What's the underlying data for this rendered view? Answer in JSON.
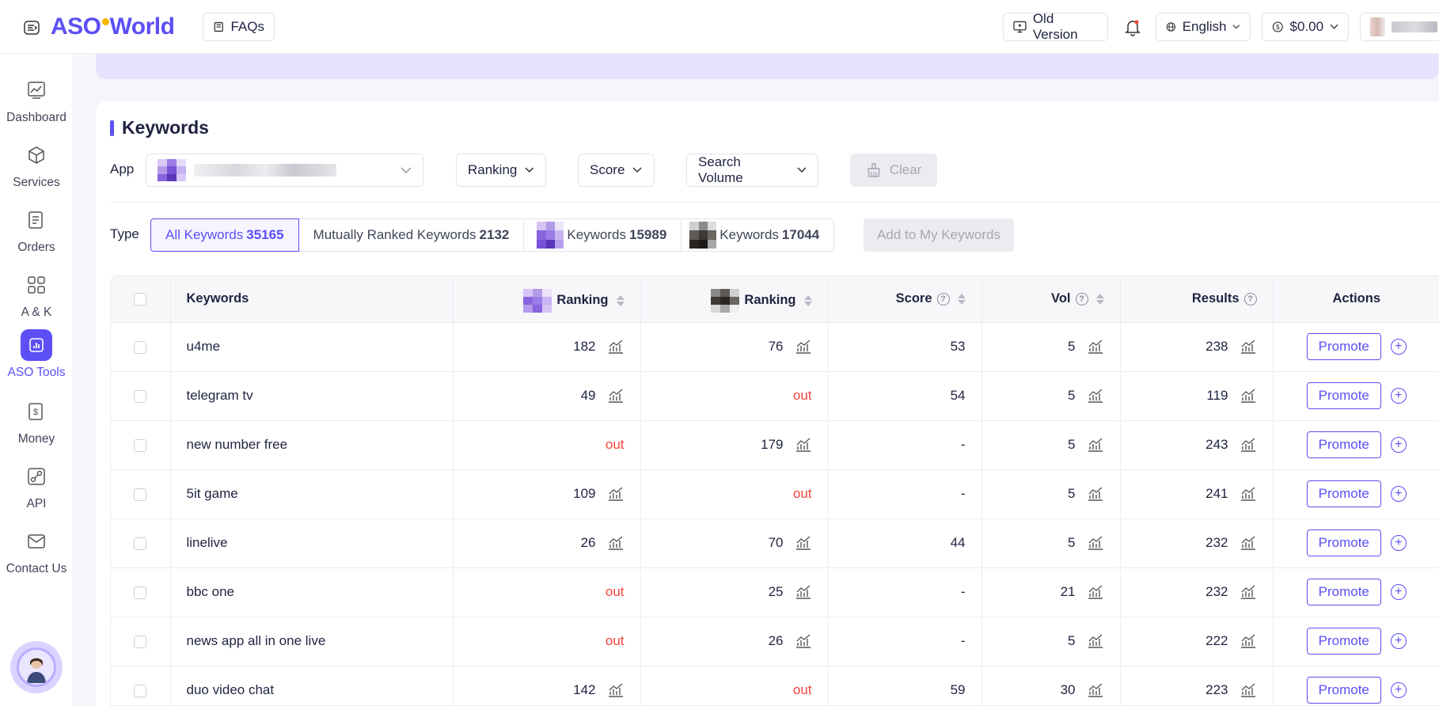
{
  "header": {
    "logo": {
      "part1": "ASO",
      "part2": "World"
    },
    "faqs_label": "FAQs",
    "old_version_label": "Old Version",
    "language_label": "English",
    "balance_label": "$0.00"
  },
  "sidebar": {
    "items": [
      {
        "label": "Dashboard",
        "icon": "chart-line-icon"
      },
      {
        "label": "Services",
        "icon": "cube-icon"
      },
      {
        "label": "Orders",
        "icon": "receipt-icon"
      },
      {
        "label": "A & K",
        "icon": "grid-icon"
      },
      {
        "label": "ASO Tools",
        "icon": "bar-chart-icon",
        "active": true
      },
      {
        "label": "Money",
        "icon": "dollar-icon"
      },
      {
        "label": "API",
        "icon": "api-link-icon"
      },
      {
        "label": "Contact Us",
        "icon": "envelope-icon"
      }
    ]
  },
  "keywords": {
    "title": "Keywords",
    "filters": {
      "app_label": "App",
      "ranking_label": "Ranking",
      "score_label": "Score",
      "volume_label": "Search Volume",
      "clear_label": "Clear"
    },
    "type": {
      "label": "Type",
      "all_label": "All Keywords",
      "all_count": "35165",
      "mutual_label": "Mutually Ranked Keywords",
      "mutual_count": "2132",
      "app1_label": "Keywords",
      "app1_count": "15989",
      "app2_label": "Keywords",
      "app2_count": "17044"
    },
    "add_label": "Add to My Keywords",
    "table": {
      "headers": {
        "keywords": "Keywords",
        "ranking1": "Ranking",
        "ranking2": "Ranking",
        "score": "Score",
        "vol": "Vol",
        "results": "Results",
        "actions": "Actions"
      },
      "promote_label": "Promote",
      "rows": [
        {
          "keyword": "u4me",
          "rank1": "182",
          "rank2": "76",
          "score": "53",
          "vol": "5",
          "results": "238"
        },
        {
          "keyword": "telegram tv",
          "rank1": "49",
          "rank2": "out",
          "score": "54",
          "vol": "5",
          "results": "119"
        },
        {
          "keyword": "new number free",
          "rank1": "out",
          "rank2": "179",
          "score": "-",
          "vol": "5",
          "results": "243"
        },
        {
          "keyword": "5it game",
          "rank1": "109",
          "rank2": "out",
          "score": "-",
          "vol": "5",
          "results": "241"
        },
        {
          "keyword": "linelive",
          "rank1": "26",
          "rank2": "70",
          "score": "44",
          "vol": "5",
          "results": "232"
        },
        {
          "keyword": "bbc one",
          "rank1": "out",
          "rank2": "25",
          "score": "-",
          "vol": "21",
          "results": "232"
        },
        {
          "keyword": "news app all in one live",
          "rank1": "out",
          "rank2": "26",
          "score": "-",
          "vol": "5",
          "results": "222"
        },
        {
          "keyword": "duo video chat",
          "rank1": "142",
          "rank2": "out",
          "score": "59",
          "vol": "30",
          "results": "223"
        }
      ]
    }
  },
  "colors": {
    "accent": "#5b4ff5",
    "out": "#f2453d",
    "logo_dot": "#f7b500"
  }
}
